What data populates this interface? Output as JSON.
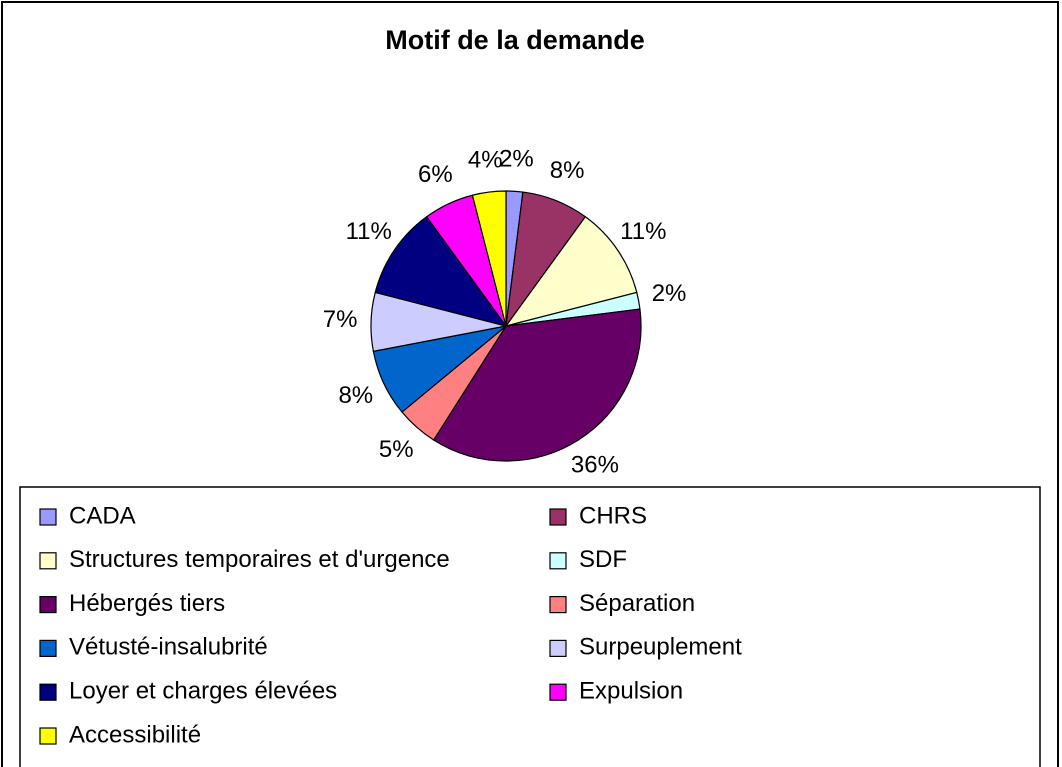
{
  "chart_data": {
    "type": "pie",
    "title": "Motif de la demande",
    "categories": [
      "CADA",
      "CHRS",
      "Structures temporaires et d'urgence",
      "SDF",
      "Hébergés tiers",
      "Séparation",
      "Vétusté-insalubrité",
      "Surpeuplement",
      "Loyer et charges élevées",
      "Expulsion",
      "Accessibilité"
    ],
    "values": [
      2,
      8,
      11,
      2,
      36,
      5,
      8,
      7,
      11,
      6,
      4
    ],
    "value_labels": [
      "2%",
      "8%",
      "11%",
      "2%",
      "36%",
      "5%",
      "8%",
      "7%",
      "11%",
      "6%",
      "4%"
    ],
    "colors": [
      "#9999ff",
      "#993366",
      "#ffffcc",
      "#ccffff",
      "#660066",
      "#ff8080",
      "#0066cc",
      "#ccccff",
      "#000080",
      "#ff00ff",
      "#ffff00"
    ],
    "legend": "bottom"
  }
}
